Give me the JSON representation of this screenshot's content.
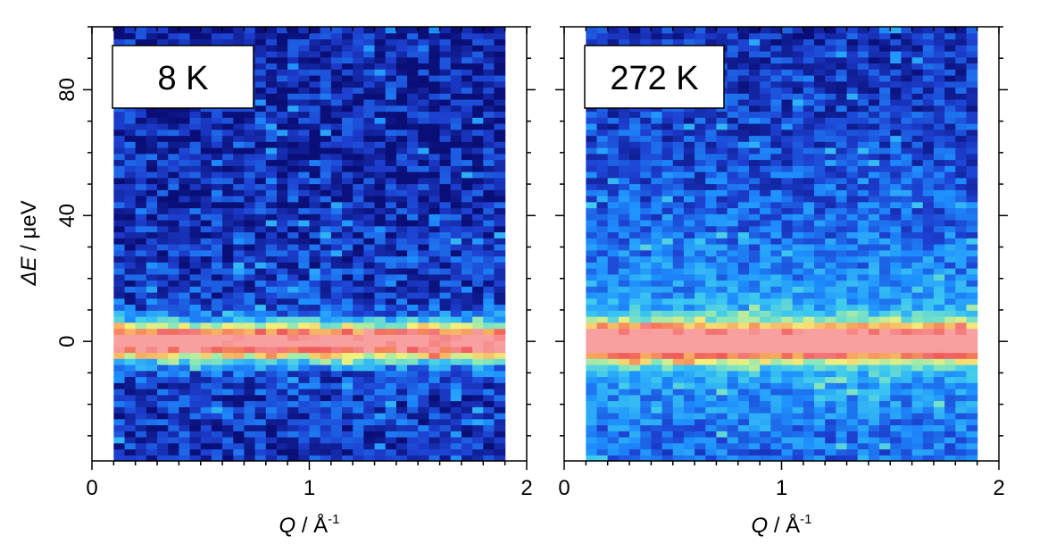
{
  "figure": {
    "ylabel_symbol": "ΔE",
    "ylabel_unit": " / μeV",
    "colormap": [
      "#0a0f78",
      "#1d3fd0",
      "#1e90ff",
      "#3cc8f0",
      "#8be8b8",
      "#f4f07a",
      "#f8a860",
      "#f05a5a",
      "#f8a0a0"
    ]
  },
  "chart_data": [
    {
      "type": "heatmap",
      "label": "8 K",
      "xlabel_symbol": "Q",
      "xlabel_unit": " / Å",
      "xlabel_exponent": "-1",
      "xlim": [
        0,
        2
      ],
      "ylim": [
        -38,
        100
      ],
      "x_ticks": [
        0,
        1,
        2
      ],
      "y_ticks": [
        0,
        40,
        80
      ],
      "q_range": [
        0.1,
        1.9
      ],
      "peak_energy": 0,
      "peak_half_width": 4,
      "background_level": 0.1,
      "background_decay": 30,
      "noise": 0.12
    },
    {
      "type": "heatmap",
      "label": "272 K",
      "xlabel_symbol": "Q",
      "xlabel_unit": " / Å",
      "xlabel_exponent": "-1",
      "xlim": [
        0,
        2
      ],
      "ylim": [
        -38,
        100
      ],
      "x_ticks": [
        0,
        1,
        2
      ],
      "y_ticks": [
        0,
        40,
        80
      ],
      "q_range": [
        0.1,
        1.9
      ],
      "peak_energy": 0,
      "peak_half_width": 4,
      "background_level": 0.3,
      "background_decay": 45,
      "noise": 0.1
    }
  ]
}
